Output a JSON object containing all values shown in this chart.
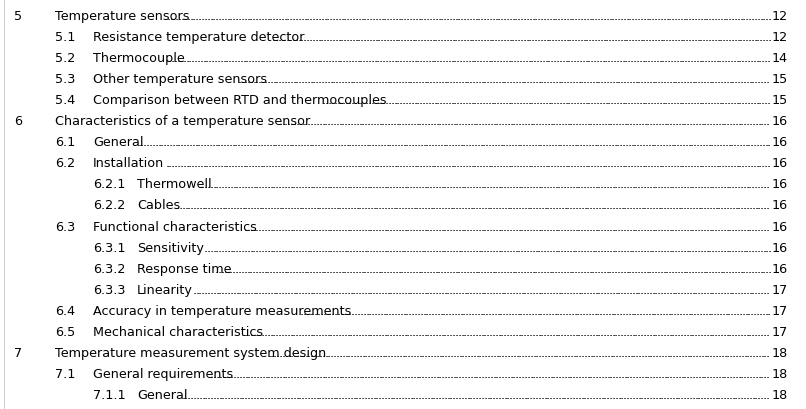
{
  "background_color": "#ffffff",
  "text_color": "#000000",
  "entries": [
    {
      "level": 0,
      "number": "5",
      "title": "Temperature sensors",
      "page": "12",
      "truncated_top": true
    },
    {
      "level": 1,
      "number": "5.1",
      "title": "Resistance temperature detector",
      "page": "12"
    },
    {
      "level": 1,
      "number": "5.2",
      "title": "Thermocouple",
      "page": "14"
    },
    {
      "level": 1,
      "number": "5.3",
      "title": "Other temperature sensors",
      "page": "15"
    },
    {
      "level": 1,
      "number": "5.4",
      "title": "Comparison between RTD and thermocouples",
      "page": "15"
    },
    {
      "level": 0,
      "number": "6",
      "title": "Characteristics of a temperature sensor",
      "page": "16"
    },
    {
      "level": 1,
      "number": "6.1",
      "title": "General",
      "page": "16"
    },
    {
      "level": 1,
      "number": "6.2",
      "title": "Installation",
      "page": "16"
    },
    {
      "level": 2,
      "number": "6.2.1",
      "title": "Thermowell",
      "page": "16"
    },
    {
      "level": 2,
      "number": "6.2.2",
      "title": "Cables",
      "page": "16"
    },
    {
      "level": 1,
      "number": "6.3",
      "title": "Functional characteristics",
      "page": "16"
    },
    {
      "level": 2,
      "number": "6.3.1",
      "title": "Sensitivity",
      "page": "16"
    },
    {
      "level": 2,
      "number": "6.3.2",
      "title": "Response time",
      "page": "16"
    },
    {
      "level": 2,
      "number": "6.3.3",
      "title": "Linearity",
      "page": "17"
    },
    {
      "level": 1,
      "number": "6.4",
      "title": "Accuracy in temperature measurements",
      "page": "17"
    },
    {
      "level": 1,
      "number": "6.5",
      "title": "Mechanical characteristics",
      "page": "17"
    },
    {
      "level": 0,
      "number": "7",
      "title": "Temperature measurement system design",
      "page": "18"
    },
    {
      "level": 1,
      "number": "7.1",
      "title": "General requirements",
      "page": "18"
    },
    {
      "level": 2,
      "number": "7.1.1",
      "title": "General",
      "page": "18"
    }
  ]
}
